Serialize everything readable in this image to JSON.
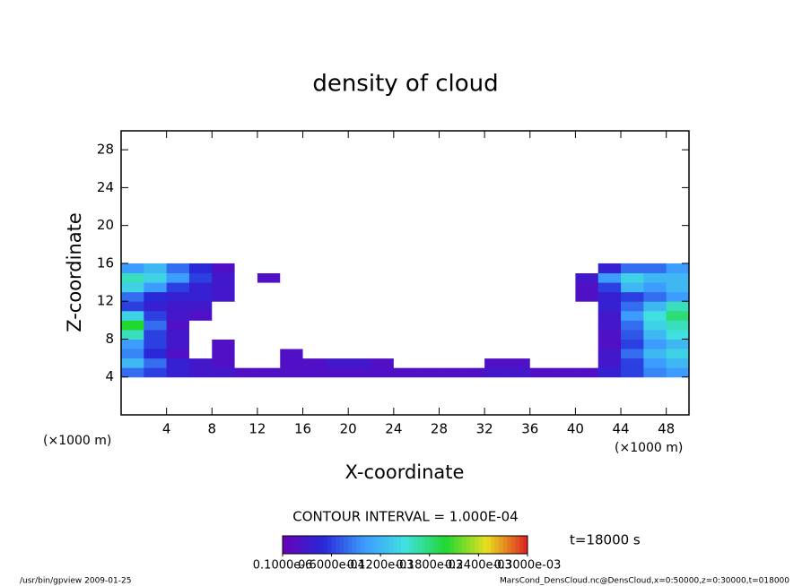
{
  "chart_data": {
    "type": "contour",
    "title": "density of cloud",
    "x_label": "X-coordinate",
    "y_label": "Z-coordinate",
    "x_unit": "(×1000 m)",
    "y_unit": "(×1000 m)",
    "contour_interval": "CONTOUR INTERVAL = 1.000E-04",
    "time_label": "t=18000 s",
    "footer_left": "/usr/bin/gpview  2009-01-25",
    "footer_right": "MarsCond_DensCloud.nc@DensCloud,x=0:50000,z=0:30000,t=018000",
    "xlim": [
      0,
      50
    ],
    "ylim": [
      0,
      30
    ],
    "xticks": [
      4,
      8,
      12,
      16,
      20,
      24,
      28,
      32,
      36,
      40,
      44,
      48
    ],
    "yticks": [
      4,
      8,
      12,
      16,
      20,
      24,
      28
    ],
    "x": [
      1,
      3,
      5,
      7,
      9,
      11,
      13,
      15,
      17,
      19,
      21,
      23,
      25,
      27,
      29,
      31,
      33,
      35,
      37,
      39,
      41,
      43,
      45,
      47,
      49
    ],
    "y": [
      4.5,
      5.5,
      6.5,
      7.5,
      8.5,
      9.5,
      10.5,
      11.5,
      12.5,
      13.5,
      14.5,
      15.5
    ],
    "values": [
      [
        8e-05,
        6e-05,
        4e-05,
        3e-05,
        3e-05,
        2e-05,
        2e-05,
        2e-05,
        2e-05,
        2e-05,
        2e-05,
        2e-05,
        2e-05,
        2e-05,
        2e-05,
        2e-05,
        3e-05,
        3e-05,
        2e-05,
        2e-05,
        2e-05,
        4e-05,
        6e-05,
        9e-05,
        0.0001
      ],
      [
        0.00012,
        8e-05,
        4e-05,
        3e-05,
        2e-05,
        0,
        0,
        2e-05,
        2e-05,
        3e-05,
        3e-05,
        2e-05,
        0,
        0,
        0,
        0,
        2e-05,
        2e-05,
        0,
        0,
        0,
        3e-05,
        6e-05,
        0.0001,
        0.00012
      ],
      [
        9e-05,
        5e-05,
        2e-05,
        0,
        2e-05,
        0,
        0,
        2e-05,
        0,
        0,
        0,
        0,
        0,
        0,
        0,
        0,
        0,
        0,
        0,
        0,
        0,
        3e-05,
        8e-05,
        0.00012,
        0.00014
      ],
      [
        0.0001,
        6e-05,
        3e-05,
        0,
        2e-05,
        0,
        0,
        0,
        0,
        0,
        0,
        0,
        0,
        0,
        0,
        0,
        0,
        0,
        0,
        0,
        0,
        2e-05,
        6e-05,
        0.0001,
        0.00012
      ],
      [
        0.00016,
        6e-05,
        3e-05,
        0,
        0,
        0,
        0,
        0,
        0,
        0,
        0,
        0,
        0,
        0,
        0,
        0,
        0,
        0,
        0,
        0,
        0,
        2e-05,
        7e-05,
        0.00012,
        0.00015
      ],
      [
        0.0002,
        8e-05,
        2e-05,
        0,
        0,
        0,
        0,
        0,
        0,
        0,
        0,
        0,
        0,
        0,
        0,
        0,
        0,
        0,
        0,
        0,
        0,
        3e-05,
        8e-05,
        0.00014,
        0.00016
      ],
      [
        0.00014,
        6e-05,
        3e-05,
        2e-05,
        0,
        0,
        0,
        0,
        0,
        0,
        0,
        0,
        0,
        0,
        0,
        0,
        0,
        0,
        0,
        0,
        0,
        3e-05,
        0.0001,
        0.00015,
        0.00018
      ],
      [
        6e-05,
        4e-05,
        3e-05,
        3e-05,
        0,
        0,
        0,
        0,
        0,
        0,
        0,
        0,
        0,
        0,
        0,
        0,
        0,
        0,
        0,
        0,
        0,
        4e-05,
        8e-05,
        0.00012,
        0.00016
      ],
      [
        8e-05,
        5e-05,
        4e-05,
        4e-05,
        3e-05,
        0,
        0,
        0,
        0,
        0,
        0,
        0,
        0,
        0,
        0,
        0,
        0,
        0,
        0,
        0,
        2e-05,
        4e-05,
        6e-05,
        8e-05,
        0.0001
      ],
      [
        0.00014,
        0.0001,
        6e-05,
        4e-05,
        3e-05,
        0,
        0,
        0,
        0,
        0,
        0,
        0,
        0,
        0,
        0,
        0,
        0,
        0,
        0,
        0,
        2e-05,
        6e-05,
        0.00012,
        0.0001,
        0.00012
      ],
      [
        0.00016,
        0.00014,
        0.0001,
        6e-05,
        3e-05,
        0,
        2e-05,
        0,
        0,
        0,
        0,
        0,
        0,
        0,
        0,
        0,
        0,
        0,
        0,
        0,
        3e-05,
        0.0001,
        0.00014,
        0.00012,
        0.00012
      ],
      [
        0.0001,
        0.00012,
        8e-05,
        5e-05,
        2e-05,
        0,
        0,
        0,
        0,
        0,
        0,
        0,
        0,
        0,
        0,
        0,
        0,
        0,
        0,
        0,
        0,
        4e-05,
        8e-05,
        8e-05,
        0.0001
      ]
    ],
    "zlim": [
      1e-07,
      0.0003
    ],
    "colormap": [
      "#6a00b8",
      "#2828d8",
      "#3c9cff",
      "#40e0e0",
      "#20d830",
      "#e8e020",
      "#e02020"
    ],
    "colorbar_ticks": [
      {
        "value": 1e-07,
        "label": "0.1000e-6"
      },
      {
        "value": 6e-05,
        "label": "0.6000e-04"
      },
      {
        "value": 0.00012,
        "label": "0.1200e-03"
      },
      {
        "value": 0.00018,
        "label": "0.1800e-03"
      },
      {
        "value": 0.00024,
        "label": "0.2400e-03"
      },
      {
        "value": 0.0003,
        "label": "0.3000e-03"
      }
    ]
  }
}
